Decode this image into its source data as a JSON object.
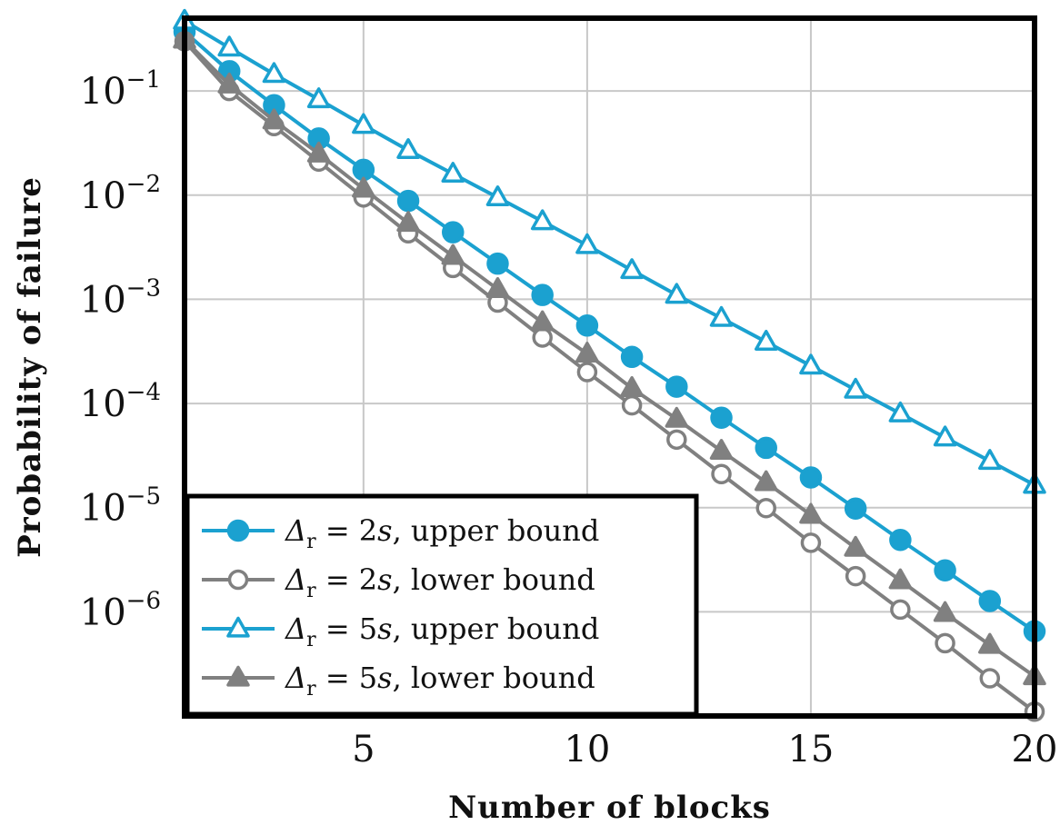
{
  "chart_data": {
    "type": "line",
    "xlabel": "Number of blocks",
    "ylabel": "Probability of failure",
    "xlim": [
      1,
      20
    ],
    "ylim": [
      1e-07,
      0.5
    ],
    "yscale": "log",
    "grid": true,
    "legend_position": "bottom-left",
    "x_ticks": [
      5,
      10,
      15,
      20
    ],
    "y_ticks": [
      {
        "value": 0.1,
        "base": "10",
        "exp": "−1"
      },
      {
        "value": 0.01,
        "base": "10",
        "exp": "−2"
      },
      {
        "value": 0.001,
        "base": "10",
        "exp": "−3"
      },
      {
        "value": 0.0001,
        "base": "10",
        "exp": "−4"
      },
      {
        "value": 1e-05,
        "base": "10",
        "exp": "−5"
      },
      {
        "value": 1e-06,
        "base": "10",
        "exp": "−6"
      }
    ],
    "x": [
      1,
      2,
      3,
      4,
      5,
      6,
      7,
      8,
      9,
      10,
      11,
      12,
      13,
      14,
      15,
      16,
      17,
      18,
      19,
      20
    ],
    "series": [
      {
        "name": "Δr = 2s, upper bound",
        "legend": {
          "symbol": "Δ",
          "sub": "r",
          "rel": " = 2",
          "var": "s",
          "rest": ", upper bound"
        },
        "color": "#1ba1d0",
        "marker": "circle-filled",
        "values": [
          0.37,
          0.155,
          0.073,
          0.035,
          0.0175,
          0.0088,
          0.0044,
          0.0022,
          0.0011,
          0.00056,
          0.00028,
          0.000145,
          7.3e-05,
          3.75e-05,
          1.95e-05,
          9.8e-06,
          4.9e-06,
          2.5e-06,
          1.27e-06,
          6.5e-07
        ]
      },
      {
        "name": "Δr = 2s, lower bound",
        "legend": {
          "symbol": "Δ",
          "sub": "r",
          "rel": " = 2",
          "var": "s",
          "rest": ", lower bound"
        },
        "color": "#808080",
        "marker": "circle-open",
        "values": [
          0.3,
          0.1,
          0.046,
          0.021,
          0.0095,
          0.0043,
          0.002,
          0.00093,
          0.00043,
          0.0002,
          9.6e-05,
          4.5e-05,
          2.1e-05,
          9.9e-06,
          4.6e-06,
          2.2e-06,
          1.05e-06,
          5e-07,
          2.3e-07,
          1.1e-07
        ]
      },
      {
        "name": "Δr = 5s, upper bound",
        "legend": {
          "symbol": "Δ",
          "sub": "r",
          "rel": " = 5",
          "var": "s",
          "rest": ", upper bound"
        },
        "color": "#1ba1d0",
        "marker": "triangle-open",
        "values": [
          0.47,
          0.26,
          0.145,
          0.083,
          0.047,
          0.027,
          0.016,
          0.0095,
          0.0056,
          0.0033,
          0.0019,
          0.0011,
          0.00066,
          0.00039,
          0.00023,
          0.000135,
          8e-05,
          4.7e-05,
          2.8e-05,
          1.65e-05
        ]
      },
      {
        "name": "Δr = 5s, lower bound",
        "legend": {
          "symbol": "Δ",
          "sub": "r",
          "rel": " = 5",
          "var": "s",
          "rest": ", lower bound"
        },
        "color": "#808080",
        "marker": "triangle-filled",
        "values": [
          0.31,
          0.115,
          0.052,
          0.025,
          0.0115,
          0.0054,
          0.0026,
          0.00125,
          0.0006,
          0.0003,
          0.00014,
          7.1e-05,
          3.5e-05,
          1.75e-05,
          8.5e-06,
          4.1e-06,
          2e-06,
          9.7e-07,
          4.8e-07,
          2.4e-07
        ]
      }
    ]
  }
}
